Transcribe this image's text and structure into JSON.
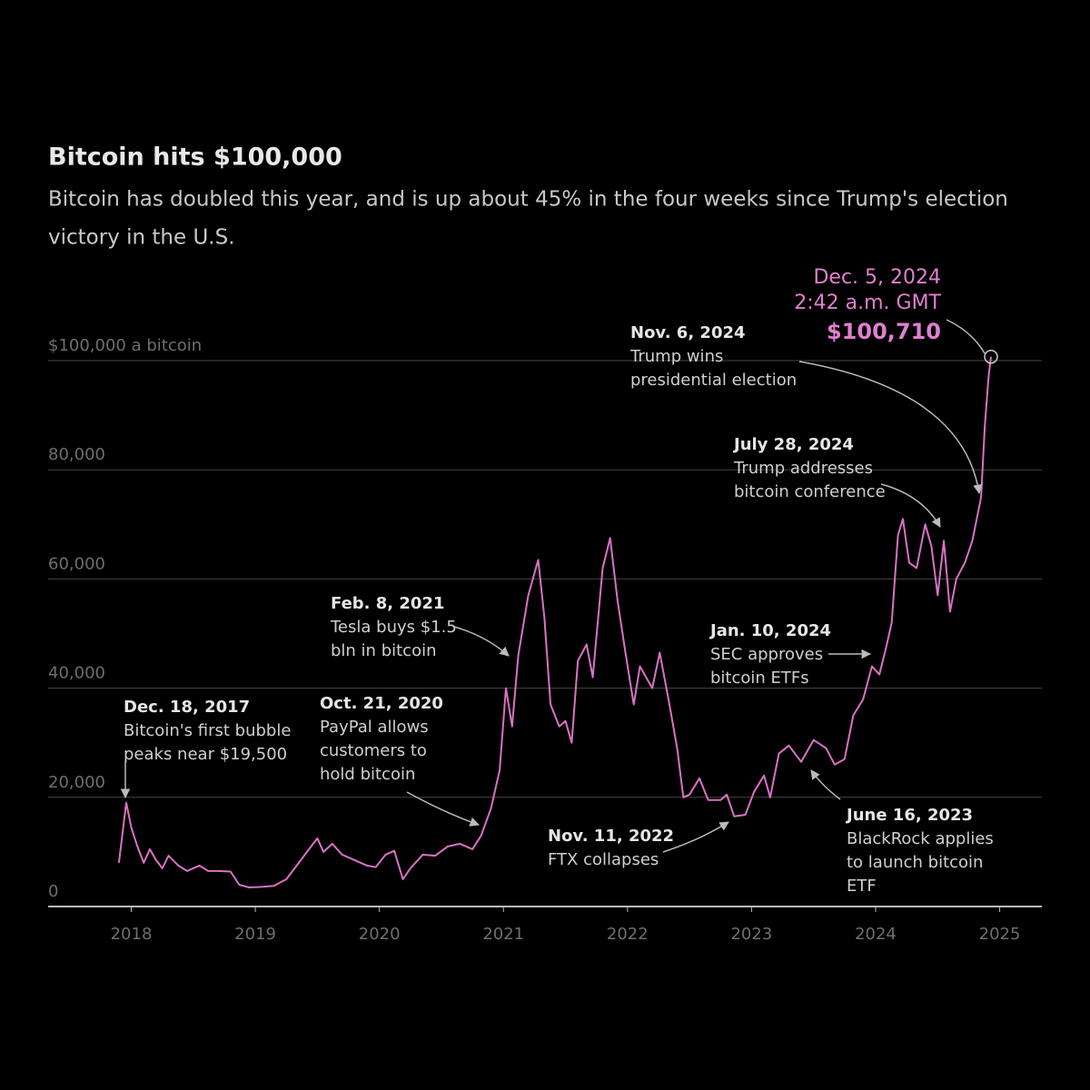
{
  "chart_data": {
    "type": "line",
    "title": "Bitcoin hits $100,000",
    "subtitle": [
      "Bitcoin has doubled this year, and is up about 45% in the four weeks since Trump's election",
      "victory in the U.S."
    ],
    "color": "#d872c4",
    "grid": true,
    "xlim": [
      2017.33,
      2025.34
    ],
    "xticks": [
      2018,
      2019,
      2020,
      2021,
      2022,
      2023,
      2024,
      2025
    ],
    "ylim": [
      0,
      100000
    ],
    "yticks": [
      0,
      {
        "value": 20000,
        "label": "20,000"
      },
      {
        "value": 40000,
        "label": "40,000"
      },
      {
        "value": 60000,
        "label": "60,000"
      },
      {
        "value": 80000,
        "label": "80,000"
      },
      {
        "value": 100000,
        "label": "$100,000 a bitcoin"
      }
    ],
    "x": [
      2017.9,
      2017.96,
      2018.0,
      2018.05,
      2018.1,
      2018.15,
      2018.2,
      2018.25,
      2018.3,
      2018.38,
      2018.45,
      2018.55,
      2018.62,
      2018.7,
      2018.8,
      2018.87,
      2018.95,
      2019.05,
      2019.15,
      2019.25,
      2019.35,
      2019.45,
      2019.5,
      2019.55,
      2019.62,
      2019.7,
      2019.8,
      2019.9,
      2019.97,
      2020.05,
      2020.12,
      2020.19,
      2020.25,
      2020.35,
      2020.45,
      2020.55,
      2020.65,
      2020.75,
      2020.82,
      2020.9,
      2020.97,
      2021.02,
      2021.07,
      2021.12,
      2021.2,
      2021.28,
      2021.33,
      2021.38,
      2021.45,
      2021.5,
      2021.55,
      2021.6,
      2021.67,
      2021.72,
      2021.8,
      2021.86,
      2021.92,
      2021.98,
      2022.05,
      2022.1,
      2022.2,
      2022.26,
      2022.33,
      2022.4,
      2022.45,
      2022.5,
      2022.58,
      2022.65,
      2022.75,
      2022.8,
      2022.86,
      2022.95,
      2023.02,
      2023.1,
      2023.15,
      2023.22,
      2023.3,
      2023.4,
      2023.5,
      2023.6,
      2023.67,
      2023.75,
      2023.82,
      2023.9,
      2023.97,
      2024.03,
      2024.08,
      2024.13,
      2024.18,
      2024.22,
      2024.27,
      2024.33,
      2024.4,
      2024.45,
      2024.5,
      2024.55,
      2024.6,
      2024.65,
      2024.72,
      2024.78,
      2024.85,
      2024.88,
      2024.91,
      2024.93
    ],
    "values": [
      8000,
      19000,
      14500,
      11000,
      8000,
      10500,
      8500,
      7000,
      9300,
      7500,
      6500,
      7500,
      6500,
      6500,
      6400,
      4000,
      3500,
      3600,
      3800,
      5000,
      8000,
      11000,
      12500,
      10000,
      11500,
      9500,
      8500,
      7500,
      7200,
      9500,
      10200,
      5000,
      7000,
      9500,
      9300,
      11000,
      11500,
      10500,
      13000,
      18000,
      25000,
      40000,
      33000,
      46000,
      57000,
      63500,
      53000,
      37000,
      33000,
      34000,
      30000,
      45000,
      48000,
      42000,
      62000,
      67500,
      56000,
      47000,
      37000,
      44000,
      40000,
      46500,
      38000,
      29000,
      20000,
      20500,
      23500,
      19500,
      19500,
      20500,
      16500,
      16800,
      21000,
      24000,
      20000,
      28000,
      29500,
      26500,
      30500,
      29000,
      26000,
      27000,
      35000,
      38000,
      44000,
      42500,
      47000,
      52000,
      68000,
      71000,
      63000,
      62000,
      70000,
      66000,
      57000,
      67000,
      54000,
      60000,
      63000,
      67000,
      75000,
      88000,
      97000,
      100710
    ],
    "annotations": [
      {
        "date": "Dec. 18, 2017",
        "lines": [
          "Bitcoin's first bubble",
          "peaks near $19,500"
        ]
      },
      {
        "date": "Oct. 21, 2020",
        "lines": [
          "PayPal allows",
          "customers to",
          "hold bitcoin"
        ]
      },
      {
        "date": "Feb. 8, 2021",
        "lines": [
          "Tesla buys $1.5",
          "bln in bitcoin"
        ]
      },
      {
        "date": "Nov. 11, 2022",
        "lines": [
          "FTX collapses"
        ]
      },
      {
        "date": "June 16, 2023",
        "lines": [
          "BlackRock applies",
          "to launch bitcoin",
          "ETF"
        ]
      },
      {
        "date": "Jan. 10, 2024",
        "lines": [
          "SEC approves",
          "bitcoin ETFs"
        ]
      },
      {
        "date": "July 28, 2024",
        "lines": [
          "Trump addresses",
          "bitcoin conference"
        ]
      },
      {
        "date": "Nov. 6, 2024",
        "lines": [
          "Trump wins",
          "presidential election"
        ]
      }
    ],
    "peak": {
      "lines": [
        "Dec. 5, 2024",
        "2:42 a.m. GMT"
      ],
      "x": 2024.93,
      "value": 100710,
      "value_label": "$100,710"
    }
  }
}
